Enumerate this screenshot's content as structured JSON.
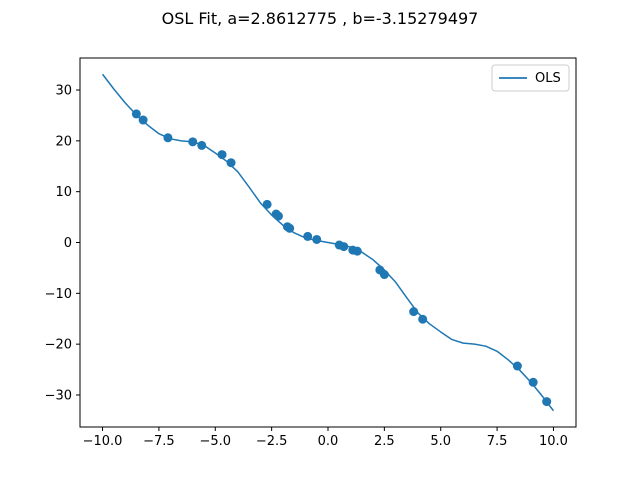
{
  "chart_data": {
    "type": "scatter",
    "title": "OSL Fit, a=2.8612775 , b=-3.15279497",
    "xlabel": "",
    "ylabel": "",
    "xlim": [
      -11.0,
      11.0
    ],
    "ylim": [
      -36.3,
      36.3
    ],
    "xticks": [
      -10.0,
      -7.5,
      -5.0,
      -2.5,
      0.0,
      2.5,
      5.0,
      7.5,
      10.0
    ],
    "xtick_labels": [
      "−10.0",
      "−7.5",
      "−5.0",
      "−2.5",
      "0.0",
      "2.5",
      "5.0",
      "7.5",
      "10.0"
    ],
    "yticks": [
      -30,
      -20,
      -10,
      0,
      10,
      20,
      30
    ],
    "ytick_labels": [
      "−30",
      "−20",
      "−10",
      "0",
      "10",
      "20",
      "30"
    ],
    "grid": false,
    "legend": {
      "placement": "top-right",
      "entries": [
        "OLS"
      ]
    },
    "series": [
      {
        "name": "OLS",
        "kind": "line",
        "color": "#1f77b4",
        "x": [
          -10,
          -9.5,
          -9,
          -8.5,
          -8,
          -7.5,
          -7,
          -6.5,
          -6,
          -5.5,
          -5,
          -4.5,
          -4,
          -3.5,
          -3,
          -2.5,
          -2,
          -1.5,
          -1,
          -0.5,
          0,
          0.5,
          1,
          1.5,
          2,
          2.5,
          3,
          3.5,
          4,
          4.5,
          5,
          5.5,
          6,
          6.5,
          7,
          7.5,
          8,
          8.5,
          9,
          9.5,
          10
        ],
        "y": [
          33.1,
          30.2,
          27.5,
          25.1,
          23.1,
          21.4,
          20.4,
          20.0,
          19.8,
          19.1,
          17.6,
          16.0,
          13.9,
          10.9,
          7.8,
          5.4,
          3.4,
          1.9,
          0.9,
          0.4,
          0.0,
          -0.4,
          -0.9,
          -1.9,
          -3.4,
          -5.4,
          -7.8,
          -10.9,
          -13.9,
          -16.0,
          -17.6,
          -19.1,
          -19.8,
          -20.0,
          -20.4,
          -21.4,
          -23.1,
          -25.1,
          -27.5,
          -30.2,
          -33.1
        ]
      },
      {
        "name": "",
        "kind": "scatter",
        "color": "#1f77b4",
        "x": [
          -8.5,
          -8.2,
          -7.1,
          -6.0,
          -5.6,
          -4.7,
          -4.3,
          -2.7,
          -2.3,
          -2.2,
          -1.8,
          -1.7,
          -0.9,
          -0.5,
          0.5,
          0.7,
          1.1,
          1.3,
          2.3,
          2.5,
          3.8,
          4.2,
          8.4,
          9.1,
          9.7
        ],
        "y": [
          25.3,
          24.1,
          20.6,
          19.8,
          19.1,
          17.3,
          15.7,
          7.5,
          5.6,
          5.2,
          3.1,
          2.8,
          1.2,
          0.6,
          -0.5,
          -0.8,
          -1.5,
          -1.7,
          -5.4,
          -6.3,
          -13.6,
          -15.1,
          -24.3,
          -27.5,
          -31.3
        ]
      }
    ]
  }
}
